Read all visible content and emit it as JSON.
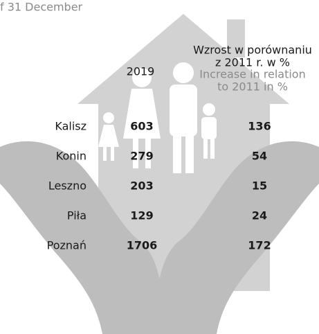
{
  "header": {
    "note": "f 31 December"
  },
  "columns": {
    "year": "2019",
    "increase_pl_1": "Wzrost w porównaniu",
    "increase_pl_2": "z 2011 r. w %",
    "increase_en_1": "Increase in relation",
    "increase_en_2": "to 2011 in %"
  },
  "table": {
    "rows": [
      {
        "city": "Kalisz",
        "value": "603",
        "increase": "136"
      },
      {
        "city": "Konin",
        "value": "279",
        "increase": "54"
      },
      {
        "city": "Leszno",
        "value": "203",
        "increase": "15"
      },
      {
        "city": "Piła",
        "value": "129",
        "increase": "24"
      },
      {
        "city": "Poznań",
        "value": "1706",
        "increase": "172"
      }
    ]
  }
}
